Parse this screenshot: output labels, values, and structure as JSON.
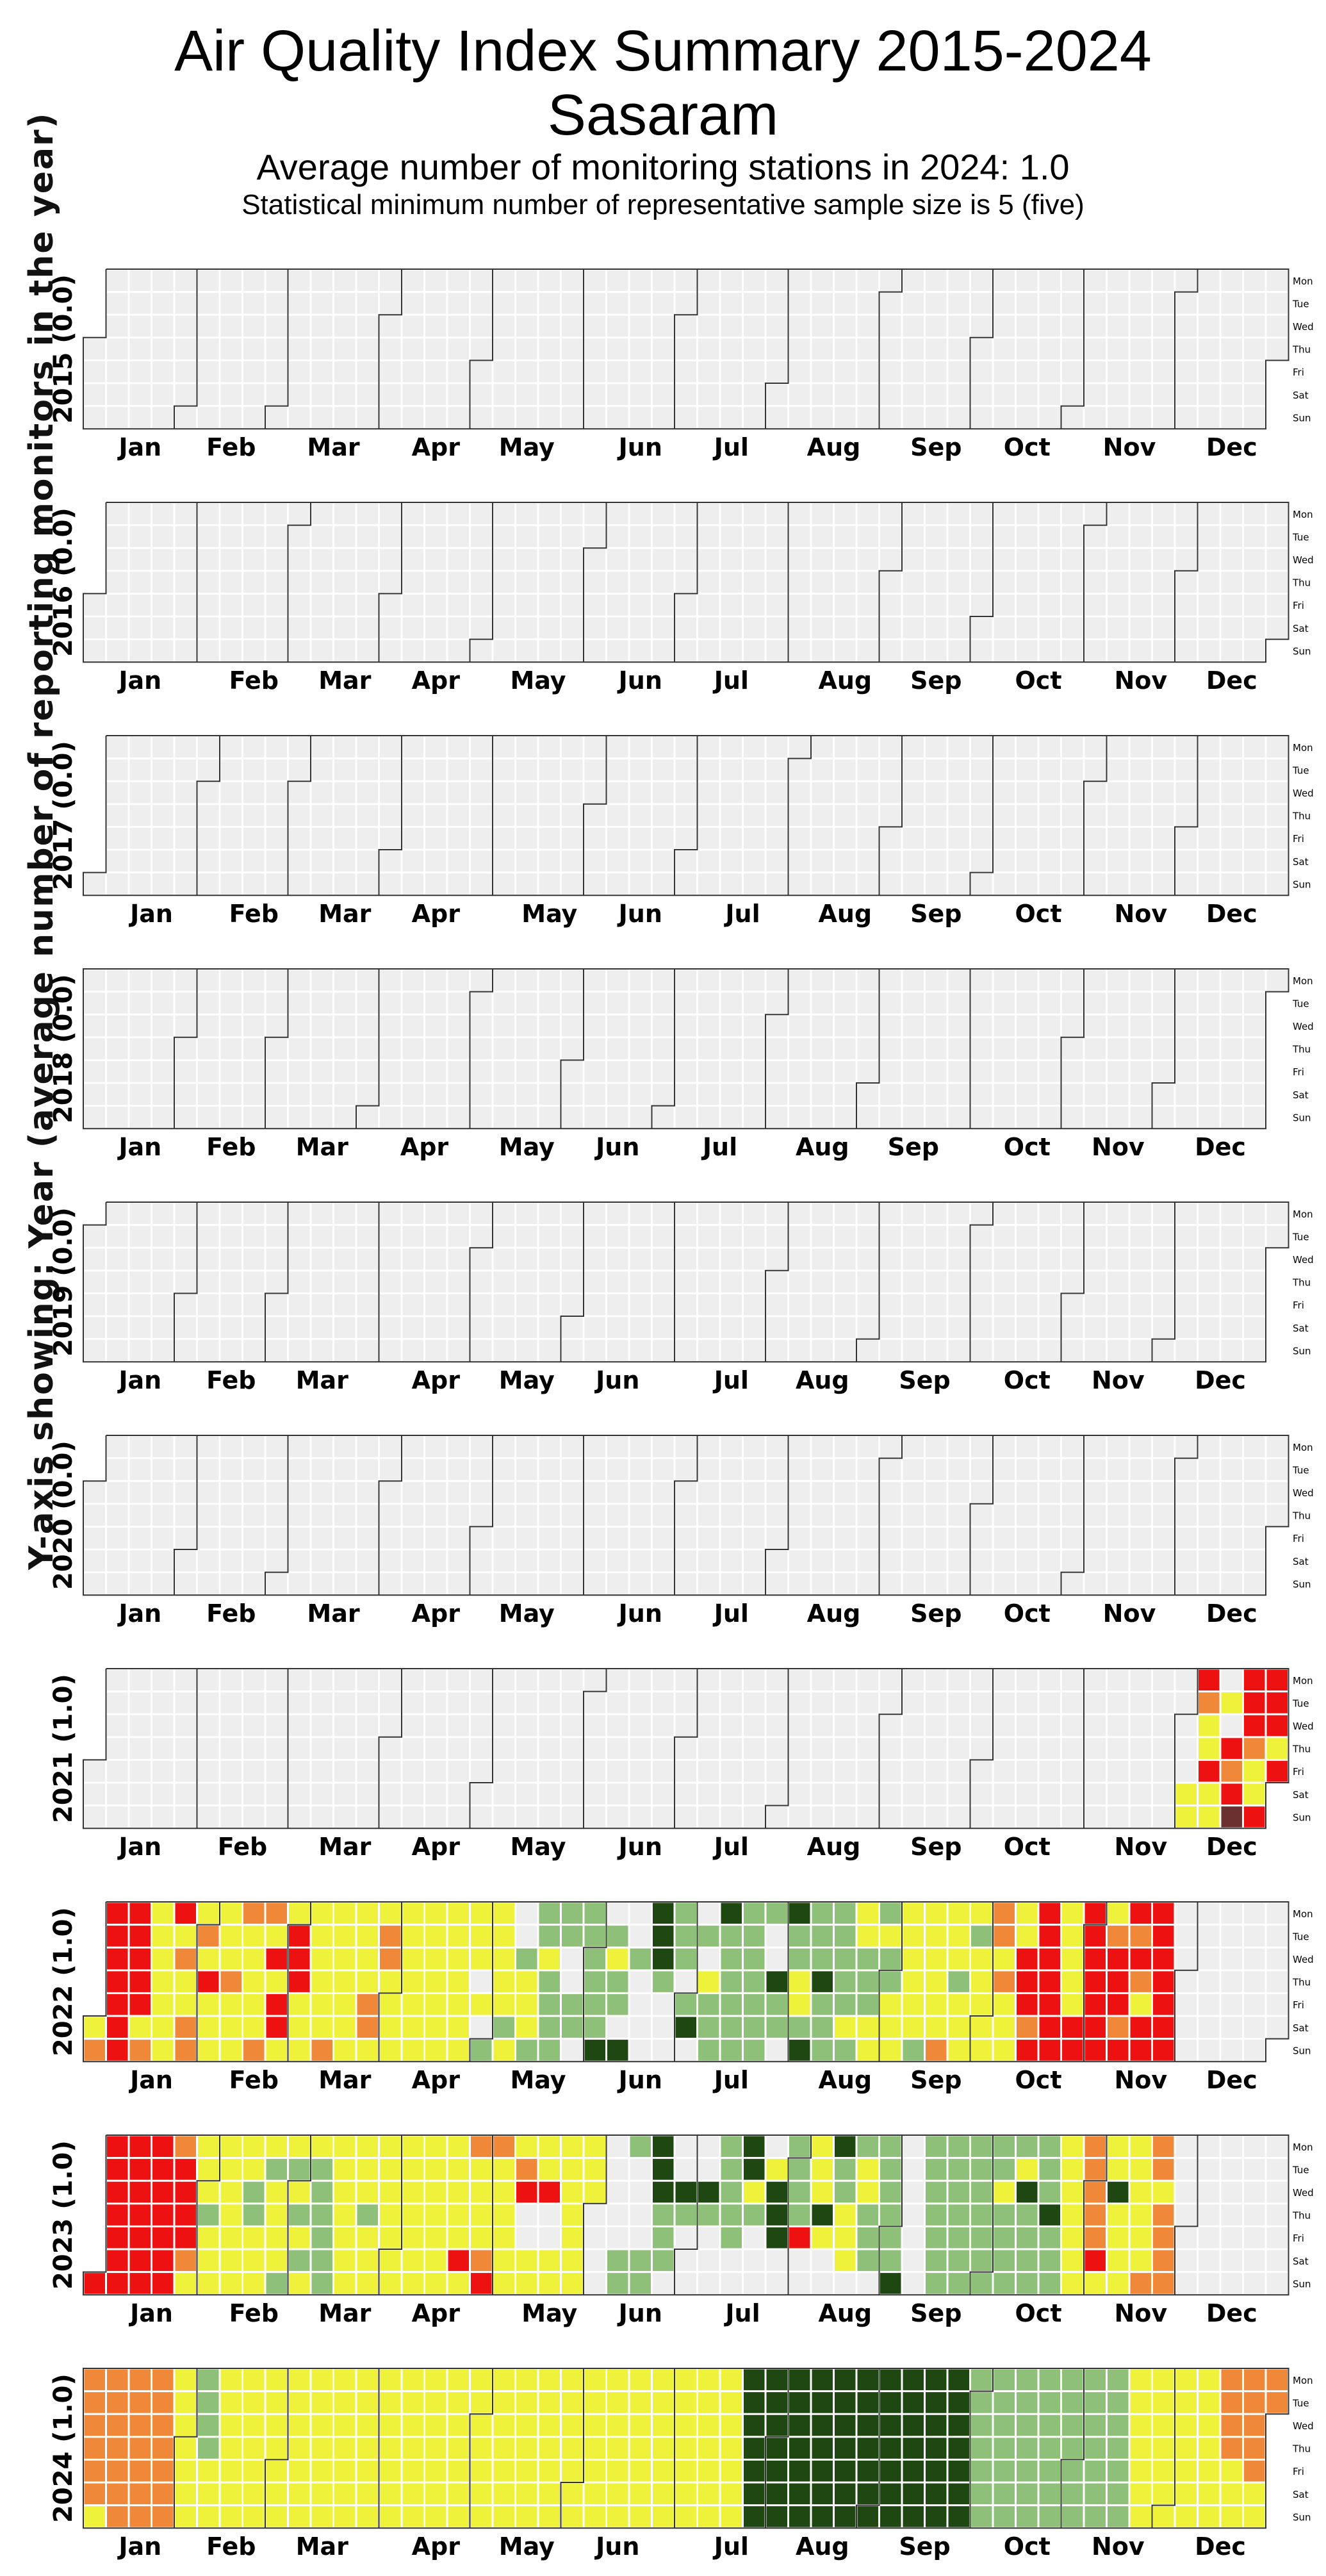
{
  "title": "Air Quality Index Summary 2015-2024",
  "city": "Sasaram",
  "subtitle": "Average number of monitoring stations in 2024: 1.0",
  "subtitle2": "Statistical minimum number of representative sample size is 5 (five)",
  "y_axis_label": "Y-axis showing: Year (average number of reporting monitors in the year)",
  "chart_data": {
    "type": "heatmap",
    "title": "Air Quality Index Summary 2015-2024",
    "months": [
      "Jan",
      "Feb",
      "Mar",
      "Apr",
      "May",
      "Jun",
      "Jul",
      "Aug",
      "Sep",
      "Oct",
      "Nov",
      "Dec"
    ],
    "weekdays": [
      "Mon",
      "Tue",
      "Wed",
      "Thu",
      "Fri",
      "Sat",
      "Sun"
    ],
    "category_colors": {
      "0": "#eeeeee",
      "1": "#1e4711",
      "2": "#8fc07a",
      "3": "#eef23a",
      "4": "#f0883a",
      "5": "#ee1111",
      "6": "#6b3030"
    },
    "category_codes": "0 = no data, 1 = darkest green, 2 = light green, 3 = yellow, 4 = orange, 5 = red, 6 = maroon (ordered by AQI colour band shown)",
    "years": [
      {
        "year": 2015,
        "label": "2015 (0.0)",
        "weeks": ""
      },
      {
        "year": 2016,
        "label": "2016 (0.0)",
        "weeks": ""
      },
      {
        "year": 2017,
        "label": "2017 (0.0)",
        "weeks": ""
      },
      {
        "year": 2018,
        "label": "2018 (0.0)",
        "weeks": ""
      },
      {
        "year": 2019,
        "label": "2019 (0.0)",
        "weeks": ""
      },
      {
        "year": 2020,
        "label": "2020 (0.0)",
        "weeks": ""
      },
      {
        "year": 2021,
        "label": "2021 (1.0)",
        "weeks": "0000000|0000000|0000000|0000000|0000000|0000000|0000000|0000000|0000000|0000000|0000000|0000000|0000000|0000000|0000000|0000000|0000000|0000000|0000000|0000000|0000000|0000000|0000000|0000000|0000000|0000000|0000000|0000000|0000000|0000000|0000000|0000000|0000000|0000000|0000000|0000000|0000000|0000000|0000000|0000000|0000000|0000000|0000000|0000000|0000000|0000000|0000000|0000000|0000033|5433533|0305456|5554335|5553543|5455444|3555430|5542300"
      },
      {
        "year": 2022,
        "label": "2022 (1.0)",
        "weeks": "4545534|5555555|5555534|3333333|5343344|3435333|3334333|4333334|4353553|3555333|3333334|3333333|3333443|3443333|3333333|3333333|3333333|3330302|3333323|0023332|2232222|2200220|2222221|0232201|0020000|1112000|2220210|0203222|1222222|2222222|2001220|1223321|2221222|2222232|3322233|2322333|3333332|3333334|3332333|3233333|4434333|3355545|5555555|3333355|5555555|3455545|5454355|5555555"
      },
      {
        "year": 2023,
        "label": "2023 (1.0)",
        "weeks": "0000005|5555555|5555555|5555555|4555543|3332333|3333333|3322333|3233332|3232323|3222222|3333333|3332333|3333333|3333333|3333333|3333353|4333345|4333333|3450033|3350033|3333333|3330000|0000022|2000022|1112220|0012000|0012000|2222200|1132000|0311100|2222500|3331300|1223330|2332220|2222221|0000000|2222222|2222222|2222222|2232222|2312222|2221222|3333333|4444453|3313333|3333334|4434444"
      },
      {
        "year": 2024,
        "label": "2024 (1.0)",
        "weeks": "4444443|4444444|4444444|4444444|3333333|2222333|3333333|3333333|3333333|3333333|3333333|3333333|3333333|3333333|3333333|3333333|3333333|3333333|3333333|3333333|3333333|3333333|3333333|3333333|3333333|3333333|3333333|3333333|3333333|1111111|1111111|1111111|1111111|1111111|1111111|1111111|1111111|1111111|1111111|2222222|2222222|2222222|2222222|2222222|2222222|2222222|3333333|3333333|3333333|3333333|4444333|4444433|4445333|4444333|2222222"
      }
    ]
  }
}
